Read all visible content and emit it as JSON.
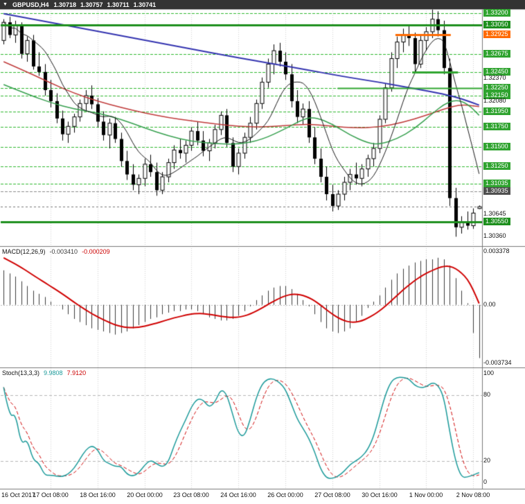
{
  "header": {
    "collapse_icon": "▼",
    "symbol": "GBPUSD,H4",
    "open": "1.30718",
    "high": "1.30757",
    "low": "1.30711",
    "close": "1.30741"
  },
  "indicators": {
    "macd": {
      "name": "MACD(12,26,9)",
      "value": "-0.003410",
      "signal": "-0.000209",
      "axis": [
        {
          "text": "0.003378",
          "value": 0.003378
        },
        {
          "text": "0.00",
          "value": 0
        },
        {
          "text": "-0.003734",
          "value": -0.003734
        }
      ]
    },
    "stoch": {
      "name": "Stoch(13,3,3)",
      "value": "9.9808",
      "signal": "7.9120",
      "axis": [
        {
          "text": "100",
          "value": 100
        },
        {
          "text": "80",
          "value": 80
        },
        {
          "text": "20",
          "value": 20
        },
        {
          "text": "0",
          "value": 0
        }
      ]
    }
  },
  "price_axis": [
    {
      "text": "1.33200",
      "price": 1.332,
      "bg": "#2fa32f"
    },
    {
      "text": "1.33050",
      "price": 1.3305,
      "bg": "#1d8f1d"
    },
    {
      "text": "1.32925",
      "price": 1.32925,
      "bg": "#ff6a00"
    },
    {
      "text": "1.32675",
      "price": 1.32675,
      "bg": "#2fa32f"
    },
    {
      "text": "1.32450",
      "price": 1.3245,
      "bg": "#2fa32f"
    },
    {
      "text": "1.32370",
      "price": 1.3237,
      "bg": null
    },
    {
      "text": "1.32250",
      "price": 1.3225,
      "bg": "#2fa32f"
    },
    {
      "text": "1.32150",
      "price": 1.3215,
      "bg": "#2fa32f"
    },
    {
      "text": "1.32080",
      "price": 1.3208,
      "bg": null
    },
    {
      "text": "1.31950",
      "price": 1.3195,
      "bg": "#2fa32f"
    },
    {
      "text": "1.31750",
      "price": 1.3175,
      "bg": "#2fa32f"
    },
    {
      "text": "1.31500",
      "price": 1.315,
      "bg": "#2fa32f"
    },
    {
      "text": "1.31250",
      "price": 1.3125,
      "bg": "#2fa32f"
    },
    {
      "text": "1.31035",
      "price": 1.31035,
      "bg": "#2fa32f"
    },
    {
      "text": "1.30935",
      "price": 1.30935,
      "bg": "#4f4f4f"
    },
    {
      "text": "1.30645",
      "price": 1.30645,
      "bg": null
    },
    {
      "text": "1.30550",
      "price": 1.3055,
      "bg": "#1d8f1d"
    },
    {
      "text": "1.30360",
      "price": 1.3036,
      "bg": null
    }
  ],
  "time_axis": [
    {
      "text": "16 Oct 2017",
      "bar": 0
    },
    {
      "text": "17 Oct 08:00",
      "bar": 8
    },
    {
      "text": "18 Oct 16:00",
      "bar": 16
    },
    {
      "text": "20 Oct 00:00",
      "bar": 24
    },
    {
      "text": "23 Oct 08:00",
      "bar": 32
    },
    {
      "text": "24 Oct 16:00",
      "bar": 40
    },
    {
      "text": "26 Oct 00:00",
      "bar": 48
    },
    {
      "text": "27 Oct 08:00",
      "bar": 56
    },
    {
      "text": "30 Oct 16:00",
      "bar": 64
    },
    {
      "text": "1 Nov 00:00",
      "bar": 72
    },
    {
      "text": "2 Nov 08:00",
      "bar": 80
    }
  ],
  "chart_data": [
    {
      "type": "candlestick",
      "title": "GBPUSD,H4",
      "timeframe": "H4",
      "ylim": [
        1.3032,
        1.3324
      ],
      "colors": {
        "grid_green": "#2eb82e",
        "up": "#ffffff",
        "down": "#000000",
        "wick": "#000000",
        "current_price_line": "#777777"
      },
      "ohlc": [
        [
          1.3285,
          1.3312,
          1.328,
          1.3308
        ],
        [
          1.3308,
          1.3315,
          1.3288,
          1.3292
        ],
        [
          1.3292,
          1.331,
          1.3282,
          1.3305
        ],
        [
          1.3305,
          1.3308,
          1.3262,
          1.3268
        ],
        [
          1.3268,
          1.329,
          1.3258,
          1.3285
        ],
        [
          1.3285,
          1.3292,
          1.3248,
          1.3252
        ],
        [
          1.3252,
          1.327,
          1.324,
          1.3245
        ],
        [
          1.3245,
          1.3255,
          1.3215,
          1.3222
        ],
        [
          1.3222,
          1.3235,
          1.32,
          1.3208
        ],
        [
          1.3208,
          1.3218,
          1.318,
          1.3186
        ],
        [
          1.3186,
          1.3196,
          1.3158,
          1.3166
        ],
        [
          1.3166,
          1.3182,
          1.3155,
          1.3176
        ],
        [
          1.3176,
          1.3192,
          1.3168,
          1.3188
        ],
        [
          1.3188,
          1.321,
          1.3182,
          1.3205
        ],
        [
          1.3205,
          1.3222,
          1.3196,
          1.3215
        ],
        [
          1.3215,
          1.3228,
          1.3198,
          1.3204
        ],
        [
          1.3204,
          1.3212,
          1.3175,
          1.3182
        ],
        [
          1.3182,
          1.3195,
          1.3158,
          1.3165
        ],
        [
          1.3165,
          1.3186,
          1.3148,
          1.318
        ],
        [
          1.318,
          1.3188,
          1.3155,
          1.316
        ],
        [
          1.316,
          1.3168,
          1.3125,
          1.3132
        ],
        [
          1.3132,
          1.3145,
          1.3108,
          1.3115
        ],
        [
          1.3115,
          1.3128,
          1.3095,
          1.3102
        ],
        [
          1.3102,
          1.3115,
          1.309,
          1.311
        ],
        [
          1.311,
          1.3135,
          1.31,
          1.3128
        ],
        [
          1.3128,
          1.314,
          1.3112,
          1.3118
        ],
        [
          1.3118,
          1.313,
          1.3088,
          1.3095
        ],
        [
          1.3095,
          1.3118,
          1.309,
          1.3112
        ],
        [
          1.3112,
          1.3135,
          1.3105,
          1.313
        ],
        [
          1.313,
          1.3152,
          1.3122,
          1.3146
        ],
        [
          1.3146,
          1.316,
          1.3135,
          1.3142
        ],
        [
          1.3142,
          1.3158,
          1.313,
          1.3152
        ],
        [
          1.3152,
          1.3175,
          1.3145,
          1.317
        ],
        [
          1.317,
          1.3182,
          1.3152,
          1.3158
        ],
        [
          1.3158,
          1.317,
          1.3138,
          1.3145
        ],
        [
          1.3145,
          1.316,
          1.3132,
          1.3155
        ],
        [
          1.3155,
          1.3178,
          1.3148,
          1.3172
        ],
        [
          1.3172,
          1.3195,
          1.3165,
          1.319
        ],
        [
          1.319,
          1.3198,
          1.315,
          1.3155
        ],
        [
          1.3155,
          1.3162,
          1.3118,
          1.3125
        ],
        [
          1.3125,
          1.3148,
          1.3115,
          1.3142
        ],
        [
          1.3142,
          1.3168,
          1.3135,
          1.3162
        ],
        [
          1.3162,
          1.3188,
          1.3155,
          1.318
        ],
        [
          1.318,
          1.321,
          1.3172,
          1.3205
        ],
        [
          1.3205,
          1.3238,
          1.3198,
          1.3232
        ],
        [
          1.3232,
          1.3262,
          1.3225,
          1.3255
        ],
        [
          1.3255,
          1.328,
          1.3242,
          1.3272
        ],
        [
          1.3272,
          1.3282,
          1.3252,
          1.3258
        ],
        [
          1.3258,
          1.327,
          1.3235,
          1.3242
        ],
        [
          1.3242,
          1.3255,
          1.32,
          1.3208
        ],
        [
          1.3208,
          1.3222,
          1.318,
          1.3188
        ],
        [
          1.3188,
          1.3205,
          1.3178,
          1.3198
        ],
        [
          1.3198,
          1.3208,
          1.3155,
          1.3162
        ],
        [
          1.3162,
          1.3175,
          1.3128,
          1.3135
        ],
        [
          1.3135,
          1.3148,
          1.3105,
          1.3112
        ],
        [
          1.3112,
          1.3125,
          1.3082,
          1.309
        ],
        [
          1.309,
          1.3102,
          1.3068,
          1.3075
        ],
        [
          1.3075,
          1.3095,
          1.307,
          1.309
        ],
        [
          1.309,
          1.3112,
          1.3082,
          1.3105
        ],
        [
          1.3105,
          1.3122,
          1.3095,
          1.3115
        ],
        [
          1.3115,
          1.313,
          1.3102,
          1.311
        ],
        [
          1.311,
          1.3128,
          1.31,
          1.3122
        ],
        [
          1.3122,
          1.314,
          1.3112,
          1.3135
        ],
        [
          1.3135,
          1.3155,
          1.3125,
          1.3148
        ],
        [
          1.3148,
          1.319,
          1.3142,
          1.3185
        ],
        [
          1.3185,
          1.323,
          1.318,
          1.3225
        ],
        [
          1.3225,
          1.327,
          1.322,
          1.3262
        ],
        [
          1.3262,
          1.329,
          1.325,
          1.3283
        ],
        [
          1.3283,
          1.33,
          1.327,
          1.3292
        ],
        [
          1.3292,
          1.3305,
          1.3278,
          1.3288
        ],
        [
          1.3288,
          1.3295,
          1.3245,
          1.3255
        ],
        [
          1.3255,
          1.3292,
          1.325,
          1.3285
        ],
        [
          1.3285,
          1.3302,
          1.3272,
          1.3296
        ],
        [
          1.3296,
          1.3335,
          1.3288,
          1.3312
        ],
        [
          1.3312,
          1.3322,
          1.329,
          1.3298
        ],
        [
          1.3298,
          1.331,
          1.3242,
          1.325
        ],
        [
          1.325,
          1.3262,
          1.3075,
          1.3085
        ],
        [
          1.3085,
          1.3098,
          1.3036,
          1.3048
        ],
        [
          1.3048,
          1.3062,
          1.304,
          1.3055
        ],
        [
          1.3055,
          1.3068,
          1.3045,
          1.305
        ],
        [
          1.305,
          1.3072,
          1.3046,
          1.3066
        ],
        [
          1.30718,
          1.30757,
          1.30711,
          1.30741
        ]
      ],
      "levels": {
        "dashed_green": [
          1.332,
          1.32675,
          1.3245,
          1.3225,
          1.3215,
          1.3195,
          1.3175,
          1.315,
          1.3125,
          1.31035,
          1.3055
        ],
        "dashed_gray": [
          1.30935
        ],
        "current_price": 1.30741,
        "solid": [
          {
            "price": 1.3305,
            "color": "#1d8f1d",
            "width": 3,
            "from": 0,
            "to": 1
          },
          {
            "price": 1.3055,
            "color": "#1d8f1d",
            "width": 3,
            "from": 0,
            "to": 1
          },
          {
            "price": 1.32925,
            "color": "#ff6a00",
            "width": 3,
            "from": 0.82,
            "to": 0.935
          },
          {
            "price": 1.3245,
            "color": "#2fa52f",
            "width": 3,
            "from": 0.855,
            "to": 0.95
          },
          {
            "price": 1.3225,
            "color": "#2fa52f",
            "width": 2,
            "from": 0.7,
            "to": 1
          }
        ]
      },
      "moving_averages": [
        {
          "name": "ma-trend-blue",
          "color": "#3333b0",
          "width": 2,
          "points": [
            [
              0,
              1.3319
            ],
            [
              10,
              1.3305
            ],
            [
              20,
              1.3291
            ],
            [
              30,
              1.3277
            ],
            [
              40,
              1.3263
            ],
            [
              50,
              1.325
            ],
            [
              58,
              1.3239
            ],
            [
              64,
              1.3232
            ],
            [
              70,
              1.3224
            ],
            [
              75,
              1.3217
            ],
            [
              78,
              1.3211
            ],
            [
              81,
              1.3203
            ]
          ]
        },
        {
          "name": "ma-slow-red",
          "color": "#c03a3a",
          "width": 1.5,
          "points": [
            [
              0,
              1.3258
            ],
            [
              4,
              1.3245
            ],
            [
              8,
              1.3231
            ],
            [
              12,
              1.3218
            ],
            [
              16,
              1.3208
            ],
            [
              20,
              1.32
            ],
            [
              24,
              1.3193
            ],
            [
              28,
              1.3187
            ],
            [
              32,
              1.3183
            ],
            [
              36,
              1.3179
            ],
            [
              40,
              1.3176
            ],
            [
              44,
              1.3175
            ],
            [
              48,
              1.3177
            ],
            [
              52,
              1.3179
            ],
            [
              56,
              1.3176
            ],
            [
              60,
              1.3174
            ],
            [
              64,
              1.3175
            ],
            [
              68,
              1.3181
            ],
            [
              72,
              1.319
            ],
            [
              75,
              1.3198
            ],
            [
              78,
              1.3204
            ],
            [
              81,
              1.3201
            ]
          ]
        },
        {
          "name": "ma-medium-green",
          "color": "#36a04e",
          "width": 1.5,
          "points": [
            [
              0,
              1.3229
            ],
            [
              4,
              1.3217
            ],
            [
              8,
              1.3206
            ],
            [
              12,
              1.3198
            ],
            [
              16,
              1.3193
            ],
            [
              20,
              1.3185
            ],
            [
              24,
              1.3174
            ],
            [
              28,
              1.3164
            ],
            [
              32,
              1.3157
            ],
            [
              36,
              1.3154
            ],
            [
              40,
              1.3153
            ],
            [
              44,
              1.3159
            ],
            [
              48,
              1.3173
            ],
            [
              51,
              1.3185
            ],
            [
              53,
              1.3188
            ],
            [
              56,
              1.3179
            ],
            [
              59,
              1.3165
            ],
            [
              62,
              1.3155
            ],
            [
              64,
              1.3153
            ],
            [
              67,
              1.316
            ],
            [
              70,
              1.3173
            ],
            [
              73,
              1.3192
            ],
            [
              75,
              1.3204
            ],
            [
              77,
              1.321
            ],
            [
              79,
              1.3205
            ],
            [
              81,
              1.319
            ]
          ]
        },
        {
          "name": "ma-fast-black",
          "color": "#1a1a1a",
          "width": 1,
          "period": 8
        }
      ]
    },
    {
      "type": "bar",
      "name": "MACD(12,26,9)",
      "ylim": [
        -0.00395,
        0.0037
      ],
      "signal_period": 9,
      "signal_start": 0.003,
      "colors": {
        "histogram": "#3a3a3a",
        "signal": "#d00000",
        "zero_line": "#bbbbbb"
      },
      "values": [
        0.0022,
        0.002,
        0.0018,
        0.0015,
        0.0012,
        0.0009,
        0.0007,
        0.0005,
        0.0002,
        0.0,
        -0.0003,
        -0.0006,
        -0.0009,
        -0.0011,
        -0.0013,
        -0.0015,
        -0.0016,
        -0.0017,
        -0.0018,
        -0.0019,
        -0.0018,
        -0.0017,
        -0.0015,
        -0.0013,
        -0.0011,
        -0.0009,
        -0.0008,
        -0.0006,
        -0.0005,
        -0.0004,
        -0.0004,
        -0.0003,
        -0.0003,
        -0.0004,
        -0.0006,
        -0.0008,
        -0.0009,
        -0.001,
        -0.001,
        -0.0009,
        -0.0007,
        -0.0004,
        -0.0001,
        0.0003,
        0.0006,
        0.0009,
        0.0011,
        0.0012,
        0.0012,
        0.001,
        0.0007,
        0.0003,
        -0.0001,
        -0.0006,
        -0.0011,
        -0.0015,
        -0.0017,
        -0.0018,
        -0.0017,
        -0.0015,
        -0.0011,
        -0.0007,
        -0.0002,
        0.0002,
        0.0006,
        0.0011,
        0.0016,
        0.002,
        0.0023,
        0.0025,
        0.0027,
        0.0028,
        0.0029,
        0.0029,
        0.003,
        0.0029,
        0.0025,
        0.0017,
        0.0009,
        0.0001,
        -0.0018,
        -0.0034
      ]
    },
    {
      "type": "line",
      "name": "Stoch(13,3,3)",
      "derived_from": "candles",
      "k_period": 13,
      "slowing": 3,
      "d_period": 3,
      "ylim": [
        -5,
        105
      ],
      "levels": [
        80,
        20
      ],
      "colors": {
        "k": "#1b9a9a",
        "d": "#d00000",
        "level_line": "#b5b5b5"
      },
      "last": {
        "k": 9.9808,
        "d": 7.912
      }
    }
  ]
}
